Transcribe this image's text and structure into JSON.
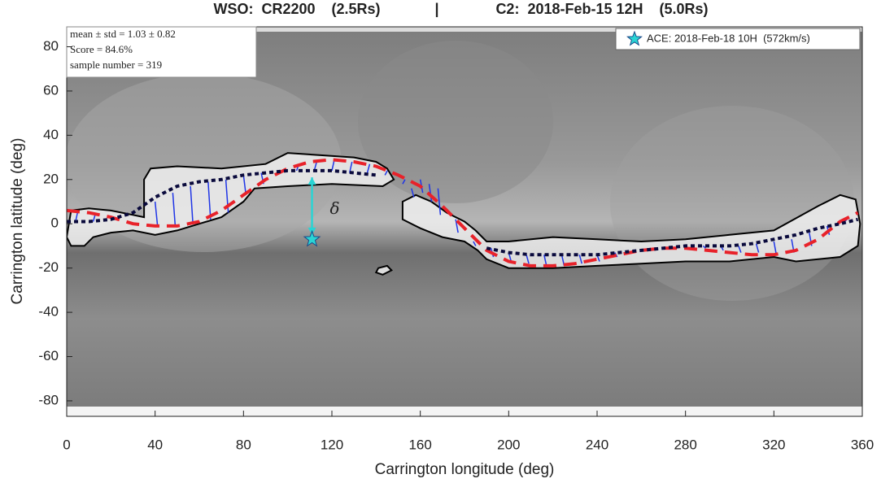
{
  "chart_data": {
    "type": "line",
    "title_left": "WSO:  CR2200    (2.5Rs)",
    "title_separator": "|",
    "title_right": "C2:  2018-Feb-15 12H    (5.0Rs)",
    "xlabel": "Carrington longitude (deg)",
    "ylabel": "Carrington latitude (deg)",
    "xlim": [
      0,
      360
    ],
    "ylim": [
      -87,
      89
    ],
    "xticks": [
      0,
      40,
      80,
      120,
      160,
      200,
      240,
      280,
      320,
      360
    ],
    "yticks": [
      -80,
      -60,
      -40,
      -20,
      0,
      20,
      40,
      60,
      80
    ],
    "annotations": [
      "mean ± std = 1.03 ± 0.82",
      "Score = 84.6%",
      "sample number = 319"
    ],
    "legend_location": "upper right",
    "contours": [
      {
        "color": "#000000",
        "x": [
          2,
          10,
          20,
          30,
          35,
          35,
          38,
          50,
          70,
          90,
          100,
          115,
          130,
          140,
          145,
          148,
          143,
          120,
          100,
          85,
          80,
          70,
          60,
          50,
          40,
          30,
          20,
          12,
          8,
          2,
          0
        ],
        "values": [
          6,
          7,
          6,
          4,
          3,
          20,
          25,
          26,
          25,
          27,
          32,
          31,
          30,
          28,
          25,
          20,
          17,
          18,
          17,
          16,
          10,
          3,
          0,
          -3,
          -5,
          -3,
          -4,
          -6,
          -10,
          -10,
          -6
        ]
      },
      {
        "color": "#000000",
        "x": [
          152,
          158,
          165,
          172,
          180,
          185,
          190,
          200,
          220,
          240,
          260,
          280,
          300,
          320,
          340,
          350,
          357,
          359,
          358,
          350,
          330,
          320,
          300,
          280,
          260,
          240,
          220,
          200,
          190,
          186,
          180,
          170,
          160,
          152
        ],
        "values": [
          10,
          13,
          10,
          5,
          1,
          -3,
          -8,
          -8,
          -6,
          -7,
          -8,
          -7,
          -5,
          -3,
          8,
          13,
          11,
          0,
          -10,
          -15,
          -17,
          -15,
          -17,
          -17,
          -18,
          -19,
          -20,
          -20,
          -16,
          -12,
          -8,
          -6,
          -2,
          2
        ]
      },
      {
        "color": "#000000",
        "x": [
          141,
          145,
          147,
          143,
          140
        ],
        "values": [
          -20,
          -19,
          -21,
          -23,
          -22
        ]
      }
    ],
    "connectors": {
      "color": "#1f35e6",
      "x": [
        4,
        12,
        20,
        40,
        48,
        56,
        64,
        72,
        80,
        88,
        96,
        104,
        112,
        120,
        128,
        136,
        144,
        152,
        156,
        160,
        164,
        168,
        176,
        184,
        192,
        200,
        208,
        216,
        224,
        232,
        240,
        248,
        256,
        264,
        272,
        280,
        288,
        296,
        304,
        312,
        320,
        328,
        336,
        344,
        352
      ],
      "y_start": [
        1,
        1,
        2,
        10,
        14,
        17,
        19,
        20,
        22,
        23,
        23,
        24,
        24,
        24,
        23,
        23,
        22,
        18,
        16,
        20,
        18,
        16,
        2,
        -8,
        -11,
        -13,
        -14,
        -14,
        -14,
        -14,
        -14,
        -13,
        -12,
        -11,
        -11,
        -10,
        -10,
        -10,
        -10,
        -9,
        -8,
        -7,
        -4,
        -1,
        1
      ],
      "y_end": [
        6,
        5,
        3,
        -1,
        -1,
        0,
        2,
        5,
        13,
        18,
        23,
        27,
        28,
        29,
        28,
        27,
        24,
        20,
        12,
        14,
        10,
        4,
        -4,
        -10,
        -15,
        -17,
        -18,
        -19,
        -19,
        -18,
        -17,
        -15,
        -13,
        -12,
        -11,
        -11,
        -11,
        -12,
        -13,
        -13,
        -14,
        -13,
        -10,
        -5,
        2
      ]
    },
    "lines": [
      {
        "color": "#e8222a",
        "style": "dashed",
        "x": [
          0,
          10,
          20,
          30,
          40,
          50,
          60,
          70,
          80,
          90,
          100,
          110,
          120,
          130,
          140,
          150,
          160,
          170,
          180,
          190,
          200,
          210,
          220,
          230,
          240,
          250,
          260,
          270,
          280,
          290,
          300,
          310,
          320,
          330,
          340,
          350,
          358
        ],
        "values": [
          6,
          5,
          3,
          0,
          -1,
          -1,
          1,
          6,
          13,
          20,
          25,
          28,
          29,
          28,
          26,
          22,
          17,
          8,
          -2,
          -12,
          -17,
          -19,
          -19,
          -18,
          -16,
          -14,
          -12,
          -11,
          -11,
          -12,
          -13,
          -14,
          -14,
          -12,
          -7,
          1,
          5
        ]
      },
      {
        "color": "#0a0a3c",
        "style": "dotted",
        "x": [
          0,
          10,
          20,
          30,
          40,
          50,
          60,
          70,
          80,
          90,
          100,
          110,
          120,
          130,
          140,
          150,
          160,
          170,
          180,
          190,
          200,
          210,
          220,
          230,
          240,
          250,
          260,
          270,
          280,
          290,
          300,
          310,
          320,
          330,
          340,
          350,
          358
        ],
        "values": [
          1,
          1,
          2,
          5,
          12,
          17,
          19,
          20,
          22,
          23,
          24,
          24,
          24,
          23,
          22,
          null,
          null,
          null,
          null,
          -11,
          -13,
          -14,
          -14,
          -14,
          -14,
          -13,
          -12,
          -11,
          -10,
          -10,
          -10,
          -9,
          -7,
          -5,
          -2,
          0,
          2
        ]
      }
    ],
    "arrow": {
      "x": 111,
      "y_start": -5,
      "y_end": 21,
      "color": "#2ad4d4",
      "label": "δ"
    },
    "point": {
      "name": "ACE: 2018-Feb-18 10H  (572km/s)",
      "x": 111,
      "y": -7,
      "color": "#2ad4d4",
      "marker": "star"
    }
  }
}
